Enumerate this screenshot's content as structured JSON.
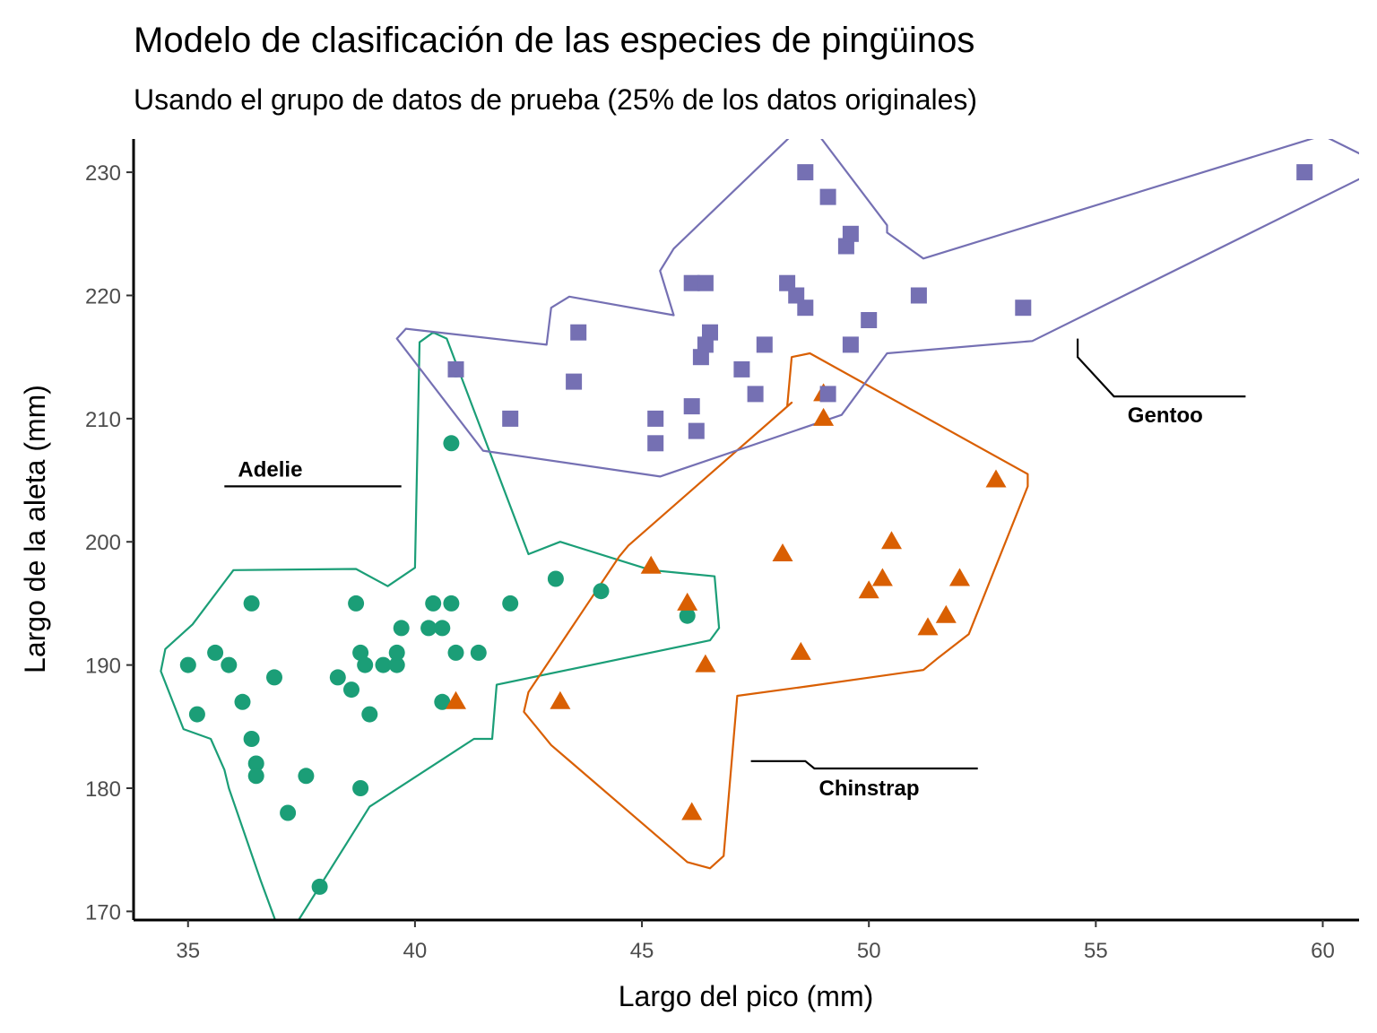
{
  "chart_data": {
    "type": "scatter",
    "title": "Modelo de clasificación de las especies de pingüinos",
    "subtitle": "Usando el grupo de datos de prueba (25% de los datos originales)",
    "xlabel": "Largo del pico (mm)",
    "ylabel": "Largo de la aleta (mm)",
    "xlim": [
      33.8,
      60.8
    ],
    "ylim": [
      169.3,
      232.7
    ],
    "xticks": [
      35,
      40,
      45,
      50,
      55,
      60
    ],
    "yticks": [
      170,
      180,
      190,
      200,
      210,
      220,
      230
    ],
    "grid": false,
    "legend": "none (labels placed next to the groups)",
    "series": [
      {
        "name": "Adelie",
        "color": "#1b9e77",
        "marker": "circle",
        "points": [
          [
            35.0,
            190
          ],
          [
            35.2,
            186
          ],
          [
            35.6,
            191
          ],
          [
            35.9,
            190
          ],
          [
            36.2,
            187
          ],
          [
            36.4,
            195
          ],
          [
            36.4,
            184
          ],
          [
            36.5,
            182
          ],
          [
            36.5,
            181
          ],
          [
            36.9,
            189
          ],
          [
            37.2,
            178
          ],
          [
            37.6,
            181
          ],
          [
            37.9,
            172
          ],
          [
            38.3,
            189
          ],
          [
            38.6,
            188
          ],
          [
            38.7,
            195
          ],
          [
            38.8,
            191
          ],
          [
            38.8,
            180
          ],
          [
            38.9,
            190
          ],
          [
            39.0,
            186
          ],
          [
            39.3,
            190
          ],
          [
            39.6,
            190
          ],
          [
            39.6,
            191
          ],
          [
            39.7,
            193
          ],
          [
            40.3,
            193
          ],
          [
            40.4,
            195
          ],
          [
            40.6,
            193
          ],
          [
            40.6,
            187
          ],
          [
            40.8,
            195
          ],
          [
            40.9,
            191
          ],
          [
            40.9,
            214
          ],
          [
            40.8,
            208
          ],
          [
            41.4,
            191
          ],
          [
            42.1,
            195
          ],
          [
            43.1,
            197
          ],
          [
            44.1,
            196
          ],
          [
            46.0,
            194
          ]
        ],
        "hull": [
          [
            40.4,
            217
          ],
          [
            40.7,
            216.5
          ],
          [
            42.5,
            199
          ],
          [
            43.2,
            200
          ],
          [
            45.2,
            197.7
          ],
          [
            46.6,
            197.2
          ],
          [
            46.7,
            193
          ],
          [
            46.5,
            192
          ],
          [
            41.8,
            188.4
          ],
          [
            41.7,
            184
          ],
          [
            41.3,
            184
          ],
          [
            39.0,
            178.5
          ],
          [
            37.3,
            168.5
          ],
          [
            37.2,
            166.5
          ],
          [
            36.6,
            172.5
          ],
          [
            35.9,
            180
          ],
          [
            35.8,
            181.5
          ],
          [
            35.5,
            184
          ],
          [
            34.9,
            184.8
          ],
          [
            34.4,
            189.5
          ],
          [
            34.5,
            191.3
          ],
          [
            35.1,
            193.3
          ],
          [
            36.0,
            197.7
          ],
          [
            38.7,
            197.8
          ],
          [
            39.4,
            196.4
          ],
          [
            40.0,
            197.9
          ],
          [
            40.1,
            216.2
          ]
        ]
      },
      {
        "name": "Chinstrap",
        "color": "#d95f02",
        "marker": "triangle",
        "points": [
          [
            40.9,
            187
          ],
          [
            43.2,
            187
          ],
          [
            45.2,
            198
          ],
          [
            46.0,
            195
          ],
          [
            46.1,
            178
          ],
          [
            46.4,
            190
          ],
          [
            48.1,
            199
          ],
          [
            48.5,
            191
          ],
          [
            49.0,
            212
          ],
          [
            49.0,
            210
          ],
          [
            50.0,
            196
          ],
          [
            50.3,
            197
          ],
          [
            50.5,
            200
          ],
          [
            51.3,
            193
          ],
          [
            51.7,
            194
          ],
          [
            52.0,
            197
          ],
          [
            52.8,
            205
          ]
        ],
        "hull": [
          [
            48.2,
            211
          ],
          [
            48.3,
            215
          ],
          [
            48.7,
            215.3
          ],
          [
            53.5,
            205.5
          ],
          [
            53.5,
            204.5
          ],
          [
            52.2,
            192.5
          ],
          [
            51.5,
            190.5
          ],
          [
            51.2,
            189.6
          ],
          [
            48.7,
            188.3
          ],
          [
            47.1,
            187.5
          ],
          [
            46.8,
            174.5
          ],
          [
            46.5,
            173.5
          ],
          [
            46.0,
            174
          ],
          [
            43.0,
            183.5
          ],
          [
            42.4,
            186.2
          ],
          [
            42.5,
            187.8
          ],
          [
            43.7,
            194.4
          ],
          [
            44.5,
            198.8
          ],
          [
            44.7,
            199.7
          ],
          [
            48.3,
            211.3
          ]
        ]
      },
      {
        "name": "Gentoo",
        "color": "#7570b3",
        "marker": "square",
        "points": [
          [
            40.9,
            214
          ],
          [
            42.1,
            210
          ],
          [
            43.5,
            213
          ],
          [
            43.6,
            217
          ],
          [
            45.3,
            210
          ],
          [
            45.3,
            208
          ],
          [
            46.1,
            211
          ],
          [
            46.1,
            221
          ],
          [
            46.2,
            209
          ],
          [
            46.3,
            215
          ],
          [
            46.4,
            221
          ],
          [
            46.4,
            216
          ],
          [
            46.5,
            217
          ],
          [
            47.2,
            214
          ],
          [
            47.5,
            212
          ],
          [
            47.7,
            216
          ],
          [
            48.2,
            221
          ],
          [
            48.4,
            220
          ],
          [
            48.6,
            219
          ],
          [
            48.6,
            230
          ],
          [
            49.1,
            228
          ],
          [
            49.1,
            212
          ],
          [
            49.5,
            224
          ],
          [
            49.6,
            225
          ],
          [
            49.6,
            216
          ],
          [
            50.0,
            218
          ],
          [
            51.1,
            220
          ],
          [
            53.4,
            219
          ],
          [
            59.6,
            230
          ]
        ],
        "hull": [
          [
            39.6,
            216.5
          ],
          [
            39.8,
            217.3
          ],
          [
            42.9,
            216
          ],
          [
            43.0,
            219
          ],
          [
            43.4,
            219.9
          ],
          [
            45.7,
            218.4
          ],
          [
            45.4,
            222
          ],
          [
            45.7,
            223.8
          ],
          [
            48.3,
            233
          ],
          [
            48.9,
            233
          ],
          [
            50.4,
            225.7
          ],
          [
            50.4,
            225.1
          ],
          [
            51.2,
            223
          ],
          [
            60.0,
            233
          ],
          [
            61.2,
            230.8
          ],
          [
            61.0,
            229.8
          ],
          [
            53.6,
            216.3
          ],
          [
            50.4,
            215.3
          ],
          [
            49.4,
            210.3
          ],
          [
            45.4,
            205.3
          ],
          [
            41.5,
            207.4
          ]
        ]
      }
    ],
    "annotations": [
      {
        "text": "Adelie",
        "label_at": [
          36.1,
          205.3
        ],
        "line": [
          [
            35.8,
            204.5
          ],
          [
            39.7,
            204.5
          ]
        ]
      },
      {
        "text": "Gentoo",
        "label_at": [
          55.7,
          209.7
        ],
        "line": [
          [
            54.6,
            216.5
          ],
          [
            54.6,
            215
          ],
          [
            55.4,
            211.8
          ],
          [
            58.3,
            211.8
          ]
        ]
      },
      {
        "text": "Chinstrap",
        "label_at": [
          48.9,
          179.4
        ],
        "line": [
          [
            47.4,
            182.2
          ],
          [
            48.6,
            182.2
          ],
          [
            48.8,
            181.6
          ],
          [
            52.4,
            181.6
          ]
        ]
      }
    ]
  }
}
